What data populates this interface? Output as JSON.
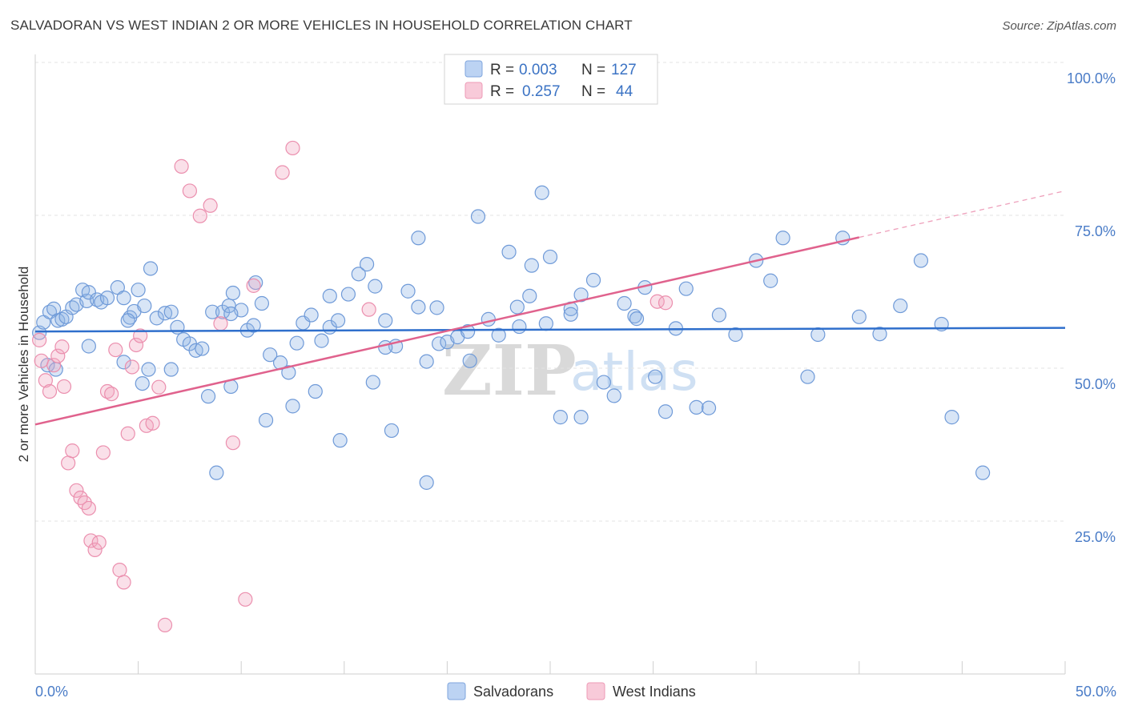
{
  "title": "SALVADORAN VS WEST INDIAN 2 OR MORE VEHICLES IN HOUSEHOLD CORRELATION CHART",
  "source": "Source: ZipAtlas.com",
  "watermark": {
    "zip": "ZIP",
    "atlas": "atlas"
  },
  "legend_box": {
    "rows": [
      {
        "series": "Salvadorans",
        "r_label": "R =",
        "r_value": "0.003",
        "n_label": "N =",
        "n_value": "127"
      },
      {
        "series": "West Indians",
        "r_label": "R =",
        "r_value": "0.257",
        "n_label": "N =",
        "n_value": "44"
      }
    ]
  },
  "bottom_legend": [
    "Salvadorans",
    "West Indians"
  ],
  "chart_data": {
    "type": "scatter",
    "title": "SALVADORAN VS WEST INDIAN 2 OR MORE VEHICLES IN HOUSEHOLD CORRELATION CHART",
    "xlabel": "",
    "ylabel": "2 or more Vehicles in Household",
    "xlim": [
      0,
      50
    ],
    "ylim": [
      0,
      100
    ],
    "x_tick_labels": [
      "0.0%",
      "50.0%"
    ],
    "y_ticks": [
      25,
      50,
      75,
      100
    ],
    "y_tick_labels": [
      "25.0%",
      "50.0%",
      "75.0%",
      "100.0%"
    ],
    "grid": true,
    "colors": {
      "Salvadorans": "#8fb4e6",
      "West Indians": "#f2a7c0",
      "blue_line": "#2f6fcc",
      "pink_line": "#e0628d"
    },
    "series": [
      {
        "name": "Salvadorans",
        "trend": {
          "x": [
            0,
            50
          ],
          "y": [
            56.0,
            56.6
          ]
        },
        "points": [
          [
            0.2,
            55.8
          ],
          [
            0.4,
            57.5
          ],
          [
            0.7,
            59.2
          ],
          [
            0.9,
            59.7
          ],
          [
            1.1,
            57.8
          ],
          [
            1.3,
            58.0
          ],
          [
            0.6,
            50.5
          ],
          [
            1.5,
            58.4
          ],
          [
            1.8,
            59.9
          ],
          [
            2.0,
            60.4
          ],
          [
            2.3,
            62.8
          ],
          [
            2.5,
            61.0
          ],
          [
            2.6,
            62.4
          ],
          [
            3.0,
            61.2
          ],
          [
            3.2,
            60.8
          ],
          [
            3.5,
            61.5
          ],
          [
            4.0,
            63.2
          ],
          [
            4.3,
            61.5
          ],
          [
            4.6,
            58.3
          ],
          [
            4.8,
            59.3
          ],
          [
            5.0,
            62.8
          ],
          [
            5.3,
            60.2
          ],
          [
            5.6,
            66.3
          ],
          [
            5.9,
            58.2
          ],
          [
            6.3,
            59.0
          ],
          [
            6.6,
            59.2
          ],
          [
            6.9,
            56.7
          ],
          [
            7.2,
            54.7
          ],
          [
            7.5,
            54.0
          ],
          [
            7.8,
            52.9
          ],
          [
            8.1,
            53.2
          ],
          [
            8.6,
            59.2
          ],
          [
            9.1,
            59.2
          ],
          [
            9.4,
            60.2
          ],
          [
            9.6,
            62.3
          ],
          [
            10.0,
            59.5
          ],
          [
            10.3,
            56.2
          ],
          [
            10.6,
            57.0
          ],
          [
            11.0,
            60.6
          ],
          [
            11.4,
            52.2
          ],
          [
            11.9,
            50.9
          ],
          [
            12.3,
            49.3
          ],
          [
            12.7,
            54.1
          ],
          [
            13.0,
            57.4
          ],
          [
            13.4,
            58.7
          ],
          [
            13.9,
            54.5
          ],
          [
            14.3,
            56.7
          ],
          [
            14.7,
            57.8
          ],
          [
            15.2,
            62.1
          ],
          [
            15.7,
            65.4
          ],
          [
            16.1,
            67.0
          ],
          [
            16.5,
            63.4
          ],
          [
            17.0,
            57.8
          ],
          [
            17.5,
            53.6
          ],
          [
            18.1,
            62.6
          ],
          [
            18.6,
            60.0
          ],
          [
            19.0,
            51.1
          ],
          [
            19.6,
            54.0
          ],
          [
            20.0,
            54.3
          ],
          [
            20.5,
            55.1
          ],
          [
            21.0,
            56.0
          ],
          [
            21.5,
            74.8
          ],
          [
            22.0,
            58.0
          ],
          [
            22.5,
            55.4
          ],
          [
            23.0,
            69.0
          ],
          [
            23.5,
            56.8
          ],
          [
            24.1,
            66.8
          ],
          [
            24.6,
            78.7
          ],
          [
            25.0,
            68.2
          ],
          [
            25.5,
            42.0
          ],
          [
            26.0,
            59.7
          ],
          [
            26.5,
            42.0
          ],
          [
            27.1,
            64.4
          ],
          [
            27.6,
            47.7
          ],
          [
            28.1,
            45.5
          ],
          [
            28.6,
            60.6
          ],
          [
            29.1,
            58.5
          ],
          [
            29.6,
            63.2
          ],
          [
            30.1,
            48.6
          ],
          [
            30.6,
            42.9
          ],
          [
            31.1,
            56.5
          ],
          [
            31.6,
            63.0
          ],
          [
            32.1,
            43.6
          ],
          [
            32.7,
            43.5
          ],
          [
            33.2,
            58.7
          ],
          [
            34.0,
            55.5
          ],
          [
            35.0,
            67.6
          ],
          [
            35.7,
            64.3
          ],
          [
            36.3,
            71.3
          ],
          [
            37.5,
            48.6
          ],
          [
            38.0,
            55.5
          ],
          [
            39.2,
            71.3
          ],
          [
            40.0,
            58.4
          ],
          [
            41.0,
            55.6
          ],
          [
            42.0,
            60.2
          ],
          [
            43.0,
            67.6
          ],
          [
            44.0,
            57.2
          ],
          [
            44.5,
            42.0
          ],
          [
            46.0,
            32.9
          ],
          [
            1.0,
            49.8
          ],
          [
            2.6,
            53.6
          ],
          [
            4.3,
            51.0
          ],
          [
            5.2,
            47.5
          ],
          [
            6.6,
            49.8
          ],
          [
            8.4,
            45.4
          ],
          [
            9.5,
            47.0
          ],
          [
            11.2,
            41.5
          ],
          [
            12.5,
            43.8
          ],
          [
            13.6,
            46.2
          ],
          [
            14.8,
            38.2
          ],
          [
            16.4,
            47.7
          ],
          [
            17.3,
            39.8
          ],
          [
            19.0,
            31.3
          ],
          [
            8.8,
            32.9
          ],
          [
            5.5,
            49.8
          ],
          [
            26.5,
            62.0
          ],
          [
            9.5,
            58.9
          ],
          [
            24.0,
            61.8
          ],
          [
            4.5,
            57.8
          ],
          [
            23.4,
            60.0
          ],
          [
            19.5,
            59.9
          ],
          [
            14.3,
            61.8
          ],
          [
            26.0,
            58.8
          ],
          [
            17.0,
            53.4
          ],
          [
            21.1,
            51.2
          ],
          [
            29.2,
            58.1
          ],
          [
            24.8,
            57.3
          ],
          [
            10.7,
            64.0
          ],
          [
            18.6,
            71.3
          ]
        ]
      },
      {
        "name": "West Indians",
        "trend": {
          "x": [
            0,
            40
          ],
          "y": [
            40.8,
            71.4
          ]
        },
        "trend_dashed": {
          "x": [
            40,
            50
          ],
          "y": [
            71.4,
            79.0
          ]
        },
        "points": [
          [
            0.2,
            54.6
          ],
          [
            0.3,
            51.2
          ],
          [
            0.5,
            48.0
          ],
          [
            0.7,
            46.2
          ],
          [
            0.9,
            50.5
          ],
          [
            1.1,
            52.0
          ],
          [
            1.3,
            53.5
          ],
          [
            1.4,
            47.0
          ],
          [
            1.6,
            34.5
          ],
          [
            1.8,
            36.5
          ],
          [
            2.0,
            30.0
          ],
          [
            2.2,
            28.8
          ],
          [
            2.4,
            28.0
          ],
          [
            2.6,
            27.1
          ],
          [
            2.7,
            21.8
          ],
          [
            2.9,
            20.3
          ],
          [
            3.1,
            21.5
          ],
          [
            3.3,
            36.2
          ],
          [
            3.5,
            46.2
          ],
          [
            3.7,
            45.8
          ],
          [
            3.9,
            53.0
          ],
          [
            4.1,
            17.0
          ],
          [
            4.3,
            15.0
          ],
          [
            4.5,
            39.3
          ],
          [
            4.7,
            50.2
          ],
          [
            4.9,
            53.8
          ],
          [
            5.1,
            55.3
          ],
          [
            5.4,
            40.6
          ],
          [
            5.7,
            41.0
          ],
          [
            6.0,
            46.9
          ],
          [
            6.3,
            8.0
          ],
          [
            7.1,
            83.0
          ],
          [
            7.5,
            79.0
          ],
          [
            8.0,
            74.9
          ],
          [
            8.5,
            76.6
          ],
          [
            9.0,
            57.3
          ],
          [
            9.6,
            37.8
          ],
          [
            10.2,
            12.2
          ],
          [
            10.6,
            63.5
          ],
          [
            12.0,
            82.0
          ],
          [
            12.5,
            86.0
          ],
          [
            16.2,
            59.6
          ],
          [
            30.2,
            60.9
          ],
          [
            30.6,
            60.7
          ]
        ]
      }
    ]
  }
}
